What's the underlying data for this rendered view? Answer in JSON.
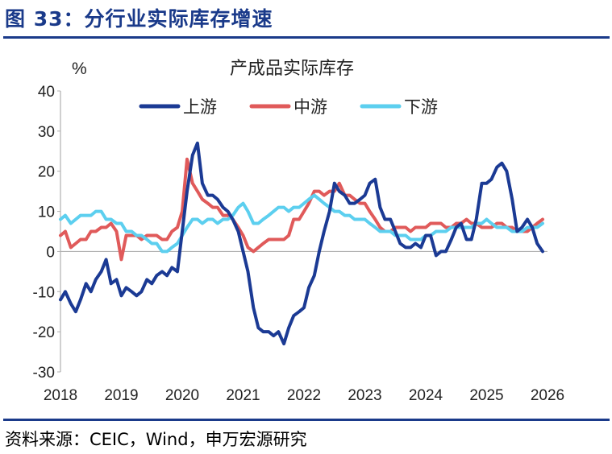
{
  "figure_title": "图 33：分行业实际库存增速",
  "source_text": "资料来源：CEIC，Wind，申万宏源研究",
  "chart_data": {
    "type": "line",
    "title": "产成品实际库存",
    "ylabel": "%",
    "xlabel": "",
    "ylim": [
      -30,
      40
    ],
    "xlim": [
      2018,
      2026
    ],
    "yticks": [
      "40",
      "30",
      "20",
      "10",
      "0",
      "-10",
      "-20",
      "-30"
    ],
    "xticks": [
      "2018",
      "2019",
      "2020",
      "2021",
      "2022",
      "2023",
      "2024",
      "2025",
      "2026"
    ],
    "legend_position": "top",
    "grid": false,
    "series": [
      {
        "name": "上游",
        "color": "#1b3a94",
        "points": [
          [
            2018.0,
            -12
          ],
          [
            2018.08,
            -10
          ],
          [
            2018.17,
            -13
          ],
          [
            2018.25,
            -15
          ],
          [
            2018.33,
            -12
          ],
          [
            2018.42,
            -8
          ],
          [
            2018.5,
            -10
          ],
          [
            2018.58,
            -7
          ],
          [
            2018.67,
            -5
          ],
          [
            2018.75,
            -2
          ],
          [
            2018.83,
            -8
          ],
          [
            2018.92,
            -7
          ],
          [
            2019.0,
            -11
          ],
          [
            2019.08,
            -9
          ],
          [
            2019.17,
            -10
          ],
          [
            2019.25,
            -11
          ],
          [
            2019.33,
            -10
          ],
          [
            2019.42,
            -7
          ],
          [
            2019.5,
            -8
          ],
          [
            2019.58,
            -6
          ],
          [
            2019.67,
            -5
          ],
          [
            2019.75,
            -6
          ],
          [
            2019.83,
            -4
          ],
          [
            2019.92,
            -5
          ],
          [
            2020.0,
            5
          ],
          [
            2020.08,
            15
          ],
          [
            2020.17,
            24
          ],
          [
            2020.25,
            27
          ],
          [
            2020.33,
            17
          ],
          [
            2020.42,
            14
          ],
          [
            2020.5,
            14
          ],
          [
            2020.58,
            13
          ],
          [
            2020.67,
            11
          ],
          [
            2020.75,
            10
          ],
          [
            2020.83,
            8
          ],
          [
            2020.92,
            5
          ],
          [
            2021.0,
            0
          ],
          [
            2021.08,
            -5
          ],
          [
            2021.17,
            -14
          ],
          [
            2021.25,
            -19
          ],
          [
            2021.33,
            -20
          ],
          [
            2021.42,
            -20
          ],
          [
            2021.5,
            -21
          ],
          [
            2021.58,
            -20
          ],
          [
            2021.67,
            -23
          ],
          [
            2021.75,
            -19
          ],
          [
            2021.83,
            -16
          ],
          [
            2021.92,
            -15
          ],
          [
            2022.0,
            -14
          ],
          [
            2022.08,
            -9
          ],
          [
            2022.17,
            -6
          ],
          [
            2022.25,
            0
          ],
          [
            2022.33,
            5
          ],
          [
            2022.42,
            10
          ],
          [
            2022.5,
            17
          ],
          [
            2022.58,
            15
          ],
          [
            2022.67,
            14
          ],
          [
            2022.75,
            12
          ],
          [
            2022.83,
            12
          ],
          [
            2022.92,
            13
          ],
          [
            2023.0,
            14
          ],
          [
            2023.08,
            17
          ],
          [
            2023.17,
            18
          ],
          [
            2023.25,
            11
          ],
          [
            2023.33,
            8
          ],
          [
            2023.42,
            8
          ],
          [
            2023.5,
            5
          ],
          [
            2023.58,
            2
          ],
          [
            2023.67,
            1
          ],
          [
            2023.75,
            1
          ],
          [
            2023.83,
            2
          ],
          [
            2023.92,
            1
          ],
          [
            2024.0,
            4
          ],
          [
            2024.08,
            4
          ],
          [
            2024.17,
            -1
          ],
          [
            2024.25,
            0
          ],
          [
            2024.33,
            0
          ],
          [
            2024.42,
            3
          ],
          [
            2024.5,
            6
          ],
          [
            2024.58,
            7
          ],
          [
            2024.67,
            3
          ],
          [
            2024.75,
            3
          ],
          [
            2024.83,
            8
          ],
          [
            2024.92,
            17
          ],
          [
            2025.0,
            17
          ],
          [
            2025.08,
            18
          ],
          [
            2025.17,
            21
          ],
          [
            2025.25,
            22
          ],
          [
            2025.33,
            20
          ],
          [
            2025.42,
            13
          ],
          [
            2025.5,
            5
          ],
          [
            2025.58,
            6
          ],
          [
            2025.67,
            8
          ],
          [
            2025.75,
            6
          ],
          [
            2025.83,
            2
          ],
          [
            2025.92,
            0
          ]
        ]
      },
      {
        "name": "中游",
        "color": "#e05a5a",
        "points": [
          [
            2018.0,
            4
          ],
          [
            2018.08,
            5
          ],
          [
            2018.17,
            1
          ],
          [
            2018.25,
            2
          ],
          [
            2018.33,
            3
          ],
          [
            2018.42,
            3
          ],
          [
            2018.5,
            5
          ],
          [
            2018.58,
            5
          ],
          [
            2018.67,
            6
          ],
          [
            2018.75,
            6
          ],
          [
            2018.83,
            7
          ],
          [
            2018.92,
            5
          ],
          [
            2019.0,
            -2
          ],
          [
            2019.08,
            4
          ],
          [
            2019.17,
            4
          ],
          [
            2019.25,
            4
          ],
          [
            2019.33,
            3
          ],
          [
            2019.42,
            4
          ],
          [
            2019.5,
            4
          ],
          [
            2019.58,
            4
          ],
          [
            2019.67,
            3
          ],
          [
            2019.75,
            3
          ],
          [
            2019.83,
            5
          ],
          [
            2019.92,
            6
          ],
          [
            2020.0,
            10
          ],
          [
            2020.08,
            23
          ],
          [
            2020.17,
            17
          ],
          [
            2020.25,
            15
          ],
          [
            2020.33,
            13
          ],
          [
            2020.42,
            12
          ],
          [
            2020.5,
            11
          ],
          [
            2020.58,
            11
          ],
          [
            2020.67,
            9
          ],
          [
            2020.75,
            9
          ],
          [
            2020.83,
            8
          ],
          [
            2020.92,
            6
          ],
          [
            2021.0,
            4
          ],
          [
            2021.08,
            1
          ],
          [
            2021.17,
            0
          ],
          [
            2021.25,
            1
          ],
          [
            2021.33,
            2
          ],
          [
            2021.42,
            3
          ],
          [
            2021.5,
            3
          ],
          [
            2021.58,
            3
          ],
          [
            2021.67,
            3
          ],
          [
            2021.75,
            4
          ],
          [
            2021.83,
            8
          ],
          [
            2021.92,
            8
          ],
          [
            2022.0,
            10
          ],
          [
            2022.08,
            12
          ],
          [
            2022.17,
            15
          ],
          [
            2022.25,
            15
          ],
          [
            2022.33,
            14
          ],
          [
            2022.42,
            15
          ],
          [
            2022.5,
            15
          ],
          [
            2022.58,
            17
          ],
          [
            2022.67,
            14
          ],
          [
            2022.75,
            14
          ],
          [
            2022.83,
            13
          ],
          [
            2022.92,
            12
          ],
          [
            2023.0,
            12
          ],
          [
            2023.08,
            10
          ],
          [
            2023.17,
            8
          ],
          [
            2023.25,
            6
          ],
          [
            2023.33,
            5
          ],
          [
            2023.42,
            5
          ],
          [
            2023.5,
            6
          ],
          [
            2023.58,
            6
          ],
          [
            2023.67,
            6
          ],
          [
            2023.75,
            5
          ],
          [
            2023.83,
            6
          ],
          [
            2023.92,
            6
          ],
          [
            2024.0,
            6
          ],
          [
            2024.08,
            7
          ],
          [
            2024.17,
            7
          ],
          [
            2024.25,
            7
          ],
          [
            2024.33,
            6
          ],
          [
            2024.42,
            6
          ],
          [
            2024.5,
            7
          ],
          [
            2024.58,
            7
          ],
          [
            2024.67,
            8
          ],
          [
            2024.75,
            7
          ],
          [
            2024.83,
            7
          ],
          [
            2024.92,
            6
          ],
          [
            2025.0,
            6
          ],
          [
            2025.08,
            6
          ],
          [
            2025.17,
            7
          ],
          [
            2025.25,
            7
          ],
          [
            2025.33,
            6
          ],
          [
            2025.42,
            6
          ],
          [
            2025.5,
            5
          ],
          [
            2025.58,
            5
          ],
          [
            2025.67,
            5
          ],
          [
            2025.75,
            6
          ],
          [
            2025.83,
            7
          ],
          [
            2025.92,
            8
          ]
        ]
      },
      {
        "name": "下游",
        "color": "#5ccfef",
        "points": [
          [
            2018.0,
            8
          ],
          [
            2018.08,
            9
          ],
          [
            2018.17,
            7
          ],
          [
            2018.25,
            8
          ],
          [
            2018.33,
            9
          ],
          [
            2018.42,
            9
          ],
          [
            2018.5,
            9
          ],
          [
            2018.58,
            10
          ],
          [
            2018.67,
            10
          ],
          [
            2018.75,
            8
          ],
          [
            2018.83,
            8
          ],
          [
            2018.92,
            7
          ],
          [
            2019.0,
            7
          ],
          [
            2019.08,
            5
          ],
          [
            2019.17,
            5
          ],
          [
            2019.25,
            4
          ],
          [
            2019.33,
            4
          ],
          [
            2019.42,
            3
          ],
          [
            2019.5,
            2
          ],
          [
            2019.58,
            2
          ],
          [
            2019.67,
            0
          ],
          [
            2019.75,
            0
          ],
          [
            2019.83,
            1
          ],
          [
            2019.92,
            2
          ],
          [
            2020.0,
            4
          ],
          [
            2020.08,
            6
          ],
          [
            2020.17,
            8
          ],
          [
            2020.25,
            8
          ],
          [
            2020.33,
            7
          ],
          [
            2020.42,
            8
          ],
          [
            2020.5,
            8
          ],
          [
            2020.58,
            7
          ],
          [
            2020.67,
            8
          ],
          [
            2020.75,
            8
          ],
          [
            2020.83,
            9
          ],
          [
            2020.92,
            11
          ],
          [
            2021.0,
            12
          ],
          [
            2021.08,
            10
          ],
          [
            2021.17,
            7
          ],
          [
            2021.25,
            7
          ],
          [
            2021.33,
            8
          ],
          [
            2021.42,
            9
          ],
          [
            2021.5,
            10
          ],
          [
            2021.58,
            11
          ],
          [
            2021.67,
            11
          ],
          [
            2021.75,
            10
          ],
          [
            2021.83,
            11
          ],
          [
            2021.92,
            11
          ],
          [
            2022.0,
            12
          ],
          [
            2022.08,
            13
          ],
          [
            2022.17,
            14
          ],
          [
            2022.25,
            13
          ],
          [
            2022.33,
            12
          ],
          [
            2022.42,
            11
          ],
          [
            2022.5,
            10
          ],
          [
            2022.58,
            10
          ],
          [
            2022.67,
            9
          ],
          [
            2022.75,
            9
          ],
          [
            2022.83,
            8
          ],
          [
            2022.92,
            8
          ],
          [
            2023.0,
            8
          ],
          [
            2023.08,
            7
          ],
          [
            2023.17,
            6
          ],
          [
            2023.25,
            5
          ],
          [
            2023.33,
            5
          ],
          [
            2023.42,
            5
          ],
          [
            2023.5,
            4
          ],
          [
            2023.58,
            4
          ],
          [
            2023.67,
            4
          ],
          [
            2023.75,
            3
          ],
          [
            2023.83,
            3
          ],
          [
            2023.92,
            3
          ],
          [
            2024.0,
            4
          ],
          [
            2024.08,
            4
          ],
          [
            2024.17,
            5
          ],
          [
            2024.25,
            5
          ],
          [
            2024.33,
            5
          ],
          [
            2024.42,
            6
          ],
          [
            2024.5,
            6
          ],
          [
            2024.58,
            6
          ],
          [
            2024.67,
            6
          ],
          [
            2024.75,
            6
          ],
          [
            2024.83,
            7
          ],
          [
            2024.92,
            7
          ],
          [
            2025.0,
            8
          ],
          [
            2025.08,
            7
          ],
          [
            2025.17,
            6
          ],
          [
            2025.25,
            6
          ],
          [
            2025.33,
            6
          ],
          [
            2025.42,
            5
          ],
          [
            2025.5,
            5
          ],
          [
            2025.58,
            5
          ],
          [
            2025.67,
            6
          ],
          [
            2025.75,
            6
          ],
          [
            2025.83,
            6
          ],
          [
            2025.92,
            7
          ]
        ]
      }
    ]
  }
}
